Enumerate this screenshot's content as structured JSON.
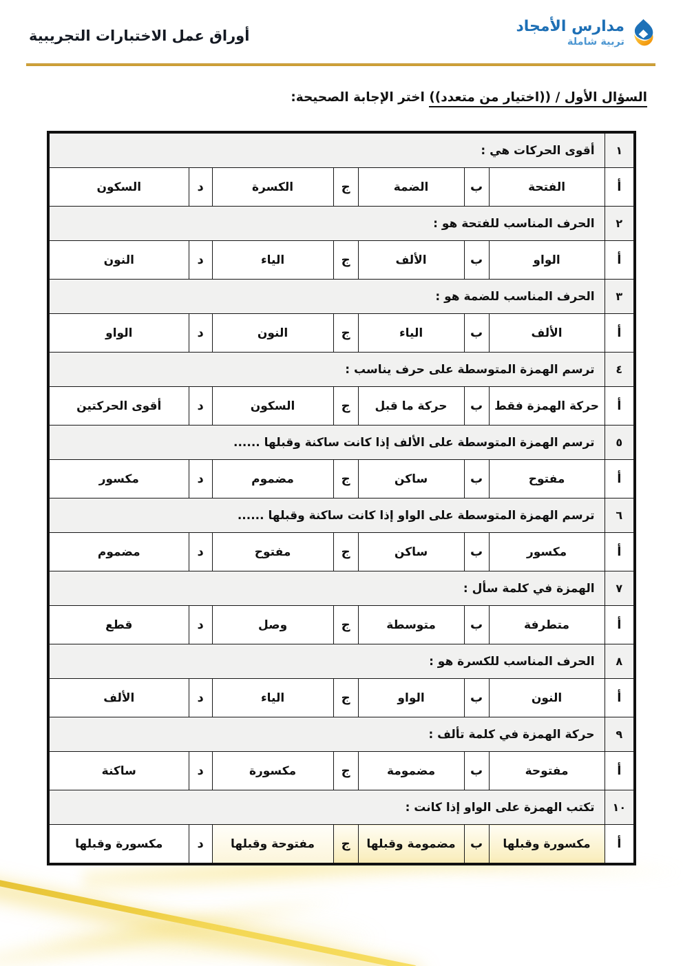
{
  "header": {
    "doc_title": "أوراق عمل الاختبارات التجريبية",
    "logo": {
      "name": "مدارس الأمجاد",
      "tagline": "تربية شاملة"
    },
    "colors": {
      "logo_blue": "#1d6fb5",
      "logo_light_blue": "#4e97d1",
      "logo_gold": "#f4a81d",
      "gold_rule": "#cf9f35"
    }
  },
  "section_title": {
    "underlined": "السؤال الأول / ((اختيار من متعدد))",
    "rest": " اختر الإجابة الصحيحة:"
  },
  "quiz": {
    "option_letters": [
      "أ",
      "ب",
      "ج",
      "د"
    ],
    "questions": [
      {
        "num": "١",
        "text": "أقوى الحركات هي :",
        "options": [
          "الفتحة",
          "الضمة",
          "الكسرة",
          "السكون"
        ]
      },
      {
        "num": "٢",
        "text": "الحرف المناسب للفتحة هو :",
        "options": [
          "الواو",
          "الألف",
          "الياء",
          "النون"
        ]
      },
      {
        "num": "٣",
        "text": "الحرف المناسب للضمة هو :",
        "options": [
          "الألف",
          "الياء",
          "النون",
          "الواو"
        ]
      },
      {
        "num": "٤",
        "text": "ترسم الهمزة المتوسطة على حرف يناسب :",
        "options": [
          "حركة الهمزة فقط",
          "حركة ما قبل",
          "السكون",
          "أقوى الحركتين"
        ]
      },
      {
        "num": "٥",
        "text": "ترسم الهمزة المتوسطة على الألف إذا كانت ساكنة وقبلها ......",
        "options": [
          "مفتوح",
          "ساكن",
          "مضموم",
          "مكسور"
        ]
      },
      {
        "num": "٦",
        "text": "ترسم الهمزة المتوسطة على الواو إذا كانت ساكنة وقبلها ......",
        "options": [
          "مكسور",
          "ساكن",
          "مفتوح",
          "مضموم"
        ]
      },
      {
        "num": "٧",
        "text": "الهمزة في كلمة سأل :",
        "options": [
          "متطرفة",
          "متوسطة",
          "وصل",
          "قطع"
        ]
      },
      {
        "num": "٨",
        "text": "الحرف المناسب للكسرة هو :",
        "options": [
          "النون",
          "الواو",
          "الياء",
          "الألف"
        ]
      },
      {
        "num": "٩",
        "text": "حركة الهمزة في كلمة تألف :",
        "options": [
          "مفتوحة",
          "مضمومة",
          "مكسورة",
          "ساكنة"
        ]
      },
      {
        "num": "١٠",
        "text": "تكتب الهمزة على الواو إذا كانت :",
        "options": [
          "مكسورة وقبلها",
          "مضمومة وقبلها",
          "مفتوحة وقبلها",
          "مكسورة وقبلها"
        ]
      }
    ]
  }
}
